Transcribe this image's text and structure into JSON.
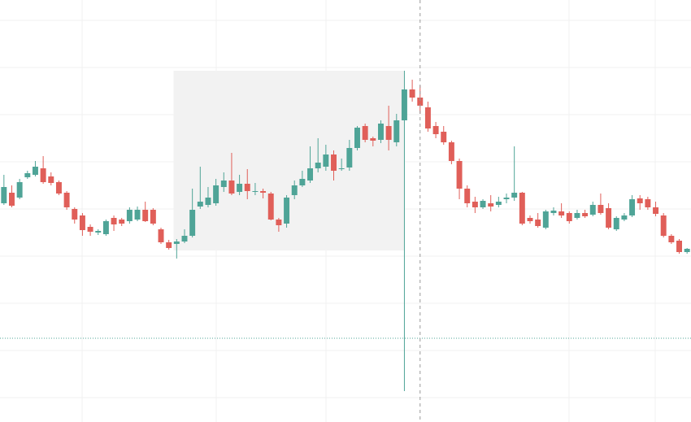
{
  "chart_data": {
    "type": "candlestick",
    "up_color": "#4fa497",
    "down_color": "#e05f59",
    "ylim": [
      0,
      519
    ],
    "yticks": [
      30,
      88,
      146,
      204,
      262,
      320,
      378,
      436,
      494
    ],
    "grid": true,
    "open": [
      269,
      282,
      276,
      301,
      304,
      312,
      302,
      295,
      282,
      262,
      254,
      240,
      233,
      231,
      251,
      249,
      247,
      249,
      261,
      261,
      237,
      221,
      219,
      222,
      229,
      265,
      267,
      269,
      289,
      297,
      283,
      293,
      283,
      284,
      281,
      249,
      244,
      279,
      291,
      297,
      312,
      314,
      329,
      311,
      313,
      337,
      364,
      349,
      347,
      364,
      344,
      371,
      409,
      399,
      387,
      364,
      357,
      344,
      321,
      287,
      271,
      264,
      269,
      267,
      274,
      276,
      282,
      251,
      249,
      239,
      257,
      259,
      257,
      251,
      257,
      255,
      267,
      263,
      237,
      249,
      254,
      275,
      274,
      264,
      254,
      229,
      223,
      209
    ],
    "high": [
      304,
      291,
      299,
      309,
      321,
      327,
      307,
      297,
      284,
      264,
      257,
      243,
      237,
      249,
      254,
      251,
      264,
      265,
      271,
      263,
      239,
      224,
      225,
      237,
      287,
      314,
      289,
      299,
      307,
      331,
      304,
      311,
      294,
      287,
      283,
      251,
      279,
      297,
      309,
      339,
      349,
      341,
      334,
      324,
      347,
      364,
      367,
      351,
      371,
      389,
      379,
      432,
      421,
      414,
      394,
      369,
      364,
      346,
      324,
      291,
      277,
      274,
      279,
      277,
      281,
      339,
      283,
      254,
      257,
      261,
      264,
      269,
      259,
      261,
      261,
      271,
      281,
      269,
      253,
      257,
      279,
      279,
      277,
      271,
      257,
      231,
      225,
      214
    ],
    "low": [
      267,
      264,
      274,
      299,
      302,
      293,
      291,
      279,
      261,
      244,
      229,
      229,
      230,
      229,
      235,
      241,
      244,
      247,
      246,
      242,
      219,
      212,
      201,
      220,
      227,
      262,
      264,
      266,
      283,
      279,
      279,
      274,
      279,
      275,
      248,
      234,
      239,
      274,
      289,
      294,
      307,
      309,
      297,
      309,
      309,
      334,
      344,
      339,
      343,
      334,
      339,
      38,
      394,
      379,
      357,
      349,
      341,
      317,
      274,
      264,
      257,
      262,
      259,
      264,
      269,
      272,
      242,
      244,
      239,
      237,
      254,
      251,
      244,
      249,
      251,
      253,
      255,
      237,
      235,
      247,
      252,
      261,
      261,
      253,
      227,
      219,
      207,
      207
    ],
    "close": [
      289,
      266,
      295,
      306,
      314,
      295,
      294,
      281,
      264,
      249,
      236,
      234,
      235,
      247,
      243,
      244,
      261,
      261,
      247,
      244,
      221,
      214,
      222,
      229,
      261,
      271,
      276,
      291,
      297,
      281,
      293,
      284,
      284,
      282,
      249,
      242,
      276,
      291,
      299,
      312,
      319,
      329,
      309,
      312,
      337,
      362,
      347,
      346,
      367,
      347,
      371,
      409,
      399,
      389,
      361,
      354,
      344,
      321,
      287,
      269,
      264,
      272,
      265,
      271,
      276,
      282,
      244,
      247,
      241,
      259,
      260,
      254,
      247,
      257,
      253,
      267,
      257,
      239,
      251,
      254,
      274,
      269,
      264,
      256,
      229,
      221,
      209,
      213
    ],
    "highlight": {
      "from": 22,
      "to": 51,
      "top": 432,
      "bottom": 211
    },
    "crosshair": 53,
    "price_line": 103
  }
}
